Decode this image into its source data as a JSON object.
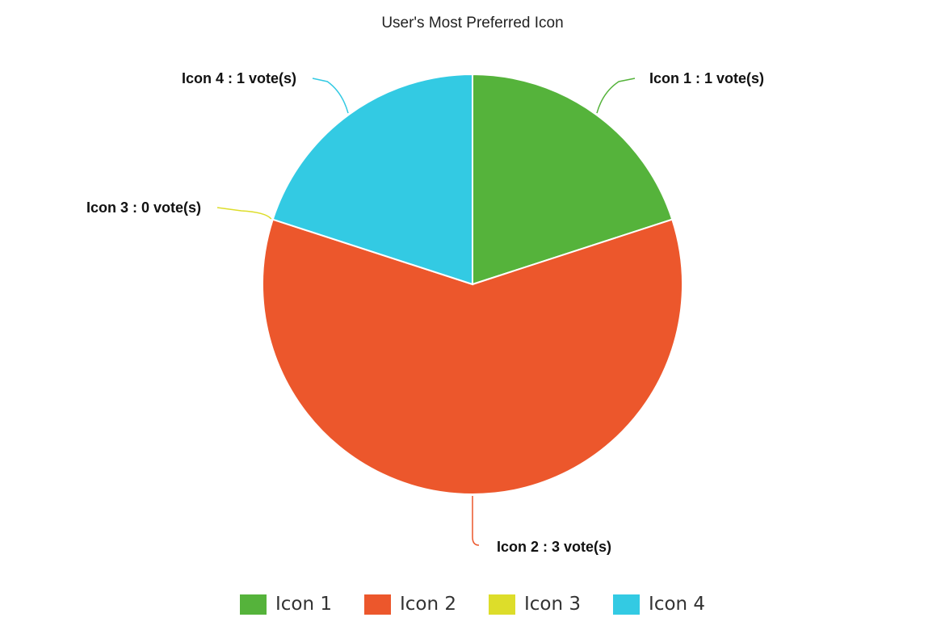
{
  "chart_data": {
    "type": "pie",
    "title": "User's Most Preferred Icon",
    "categories": [
      "Icon 1",
      "Icon 2",
      "Icon 3",
      "Icon 4"
    ],
    "values": [
      1,
      3,
      0,
      1
    ],
    "slice_labels": [
      "Icon 1 : 1 vote(s)",
      "Icon 2 : 3 vote(s)",
      "Icon 3 : 0 vote(s)",
      "Icon 4 : 1 vote(s)"
    ],
    "colors": [
      "#55b33b",
      "#ec572c",
      "#dddd2a",
      "#33cae3"
    ],
    "legend_position": "bottom"
  },
  "legend": {
    "items": [
      {
        "label": "Icon 1",
        "color": "#55b33b"
      },
      {
        "label": "Icon 2",
        "color": "#ec572c"
      },
      {
        "label": "Icon 3",
        "color": "#dddd2a"
      },
      {
        "label": "Icon 4",
        "color": "#33cae3"
      }
    ]
  }
}
